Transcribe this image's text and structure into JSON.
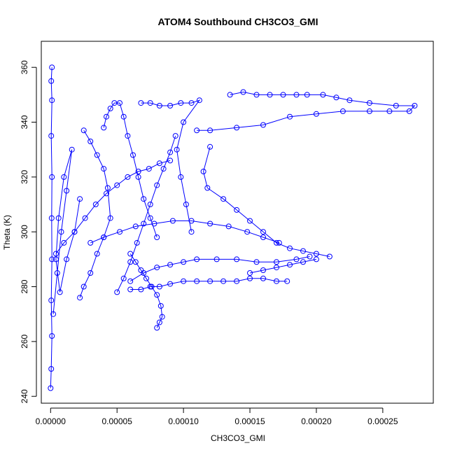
{
  "chart_data": {
    "type": "scatter",
    "title": "ATOM4 Southbound CH3CO3_GMI",
    "xlabel": "CH3CO3_GMI",
    "ylabel": "Theta (K)",
    "xlim": [
      -7e-06,
      0.000288
    ],
    "ylim": [
      237.5,
      369.5
    ],
    "x_ticks": [
      0.0,
      5e-05,
      0.0001,
      0.00015,
      0.0002,
      0.00025
    ],
    "x_tick_labels": [
      "0.00000",
      "0.00005",
      "0.00010",
      "0.00015",
      "0.00020",
      "0.00025"
    ],
    "y_ticks": [
      240,
      260,
      280,
      300,
      320,
      340,
      360
    ],
    "y_tick_labels": [
      "240",
      "260",
      "280",
      "300",
      "320",
      "340",
      "360"
    ],
    "marker": "open-circle",
    "connected": true,
    "color": "#0000ff",
    "grid": false,
    "series": [
      {
        "points": [
          [
            0.0,
            243
          ],
          [
            5e-07,
            250
          ],
          [
            1e-06,
            262
          ],
          [
            5e-07,
            275
          ],
          [
            1e-06,
            290
          ],
          [
            8e-07,
            305
          ],
          [
            1e-06,
            320
          ],
          [
            5e-07,
            335
          ],
          [
            1e-06,
            348
          ],
          [
            5e-07,
            355
          ],
          [
            1e-06,
            360
          ]
        ]
      },
      {
        "points": [
          [
            2e-06,
            270
          ],
          [
            5e-06,
            285
          ],
          [
            8e-06,
            300
          ],
          [
            1.2e-05,
            315
          ],
          [
            1.6e-05,
            330
          ],
          [
            1e-05,
            320
          ],
          [
            6e-06,
            305
          ],
          [
            4e-06,
            290
          ],
          [
            7e-06,
            278
          ],
          [
            1.2e-05,
            290
          ],
          [
            1.8e-05,
            300
          ],
          [
            2.2e-05,
            312
          ]
        ]
      },
      {
        "points": [
          [
            2.5e-05,
            337
          ],
          [
            3e-05,
            333
          ],
          [
            3.5e-05,
            328
          ],
          [
            4e-05,
            323
          ],
          [
            4.3e-05,
            316
          ],
          [
            4.5e-05,
            305
          ],
          [
            4e-05,
            298
          ],
          [
            3.5e-05,
            292
          ],
          [
            3e-05,
            285
          ],
          [
            2.5e-05,
            280
          ],
          [
            2.2e-05,
            276
          ]
        ]
      },
      {
        "points": [
          [
            4e-05,
            338
          ],
          [
            4.2e-05,
            342
          ],
          [
            4.5e-05,
            345
          ],
          [
            4.8e-05,
            347
          ],
          [
            5.2e-05,
            347
          ],
          [
            5.5e-05,
            342
          ],
          [
            5.8e-05,
            335
          ],
          [
            6.2e-05,
            328
          ],
          [
            6.6e-05,
            320
          ],
          [
            7e-05,
            312
          ],
          [
            7.5e-05,
            305
          ],
          [
            8e-05,
            298
          ]
        ]
      },
      {
        "points": [
          [
            6.8e-05,
            347
          ],
          [
            7.5e-05,
            347
          ],
          [
            8.2e-05,
            346
          ],
          [
            9e-05,
            346
          ],
          [
            9.8e-05,
            347
          ],
          [
            0.000106,
            347
          ],
          [
            0.000112,
            348
          ],
          [
            0.0001,
            340
          ],
          [
            9.5e-05,
            330
          ],
          [
            9.8e-05,
            320
          ],
          [
            0.000102,
            310
          ],
          [
            0.000106,
            300
          ]
        ]
      },
      {
        "points": [
          [
            0.000135,
            350
          ],
          [
            0.000145,
            351
          ],
          [
            0.000155,
            350
          ],
          [
            0.000165,
            350
          ],
          [
            0.000175,
            350
          ],
          [
            0.000185,
            350
          ],
          [
            0.000193,
            350
          ],
          [
            0.000205,
            350
          ],
          [
            0.000215,
            349
          ],
          [
            0.000225,
            348
          ],
          [
            0.00024,
            347
          ],
          [
            0.00026,
            346
          ],
          [
            0.000274,
            346
          ],
          [
            0.00027,
            344
          ],
          [
            0.000255,
            344
          ],
          [
            0.00024,
            344
          ],
          [
            0.00022,
            344
          ],
          [
            0.0002,
            343
          ],
          [
            0.00018,
            342
          ],
          [
            0.00016,
            339
          ],
          [
            0.00014,
            338
          ],
          [
            0.00012,
            337
          ],
          [
            0.00011,
            337
          ]
        ]
      },
      {
        "points": [
          [
            0.00012,
            331
          ],
          [
            0.000115,
            322
          ],
          [
            0.000118,
            316
          ],
          [
            0.00013,
            312
          ],
          [
            0.00014,
            308
          ],
          [
            0.00015,
            304
          ],
          [
            0.00016,
            300
          ],
          [
            0.00017,
            296
          ],
          [
            0.00018,
            294
          ],
          [
            0.00019,
            293
          ],
          [
            0.0002,
            292
          ],
          [
            0.00021,
            291
          ]
        ]
      },
      {
        "points": [
          [
            6e-05,
            282
          ],
          [
            7e-05,
            285
          ],
          [
            8e-05,
            287
          ],
          [
            9e-05,
            288
          ],
          [
            0.0001,
            289
          ],
          [
            0.00011,
            290
          ],
          [
            0.000125,
            290
          ],
          [
            0.00014,
            290
          ],
          [
            0.000155,
            289
          ],
          [
            0.00017,
            289
          ],
          [
            0.000185,
            290
          ],
          [
            0.000195,
            291
          ]
        ]
      },
      {
        "points": [
          [
            6e-05,
            279
          ],
          [
            6.8e-05,
            279
          ],
          [
            7.5e-05,
            280
          ],
          [
            8.2e-05,
            280
          ],
          [
            9e-05,
            281
          ],
          [
            0.0001,
            282
          ],
          [
            0.00011,
            282
          ],
          [
            0.00012,
            282
          ],
          [
            0.00013,
            282
          ],
          [
            0.00014,
            282
          ],
          [
            0.00015,
            283
          ],
          [
            0.00016,
            283
          ],
          [
            0.00017,
            282
          ],
          [
            0.000178,
            282
          ]
        ]
      },
      {
        "points": [
          [
            8e-05,
            265
          ],
          [
            8.2e-05,
            267
          ],
          [
            8.4e-05,
            269
          ],
          [
            8.3e-05,
            273
          ],
          [
            8e-05,
            277
          ],
          [
            7.6e-05,
            280
          ],
          [
            7.2e-05,
            283
          ],
          [
            6.8e-05,
            286
          ],
          [
            6.4e-05,
            289
          ],
          [
            6e-05,
            292
          ]
        ]
      },
      {
        "points": [
          [
            4e-06,
            292
          ],
          [
            1e-05,
            296
          ],
          [
            1.8e-05,
            300
          ],
          [
            2.6e-05,
            305
          ],
          [
            3.4e-05,
            310
          ],
          [
            4.2e-05,
            314
          ],
          [
            5e-05,
            317
          ],
          [
            5.8e-05,
            320
          ],
          [
            6.6e-05,
            322
          ],
          [
            7.4e-05,
            323
          ],
          [
            8.2e-05,
            325
          ],
          [
            9e-05,
            326
          ]
        ]
      },
      {
        "points": [
          [
            3e-05,
            296
          ],
          [
            4e-05,
            298
          ],
          [
            5.2e-05,
            300
          ],
          [
            6.4e-05,
            302
          ],
          [
            7.8e-05,
            303
          ],
          [
            9.2e-05,
            304
          ],
          [
            0.000106,
            304
          ],
          [
            0.00012,
            303
          ],
          [
            0.000134,
            302
          ],
          [
            0.000148,
            300
          ],
          [
            0.00016,
            298
          ],
          [
            0.000172,
            296
          ]
        ]
      },
      {
        "points": [
          [
            5e-05,
            278
          ],
          [
            5.5e-05,
            283
          ],
          [
            6e-05,
            289
          ],
          [
            6.5e-05,
            296
          ],
          [
            7e-05,
            303
          ],
          [
            7.5e-05,
            310
          ],
          [
            8e-05,
            317
          ],
          [
            8.5e-05,
            323
          ],
          [
            9e-05,
            329
          ],
          [
            9.4e-05,
            335
          ]
        ]
      },
      {
        "points": [
          [
            0.00015,
            285
          ],
          [
            0.00016,
            286
          ],
          [
            0.00017,
            287
          ],
          [
            0.00018,
            288
          ],
          [
            0.00019,
            289
          ],
          [
            0.0002,
            290
          ]
        ]
      }
    ]
  }
}
